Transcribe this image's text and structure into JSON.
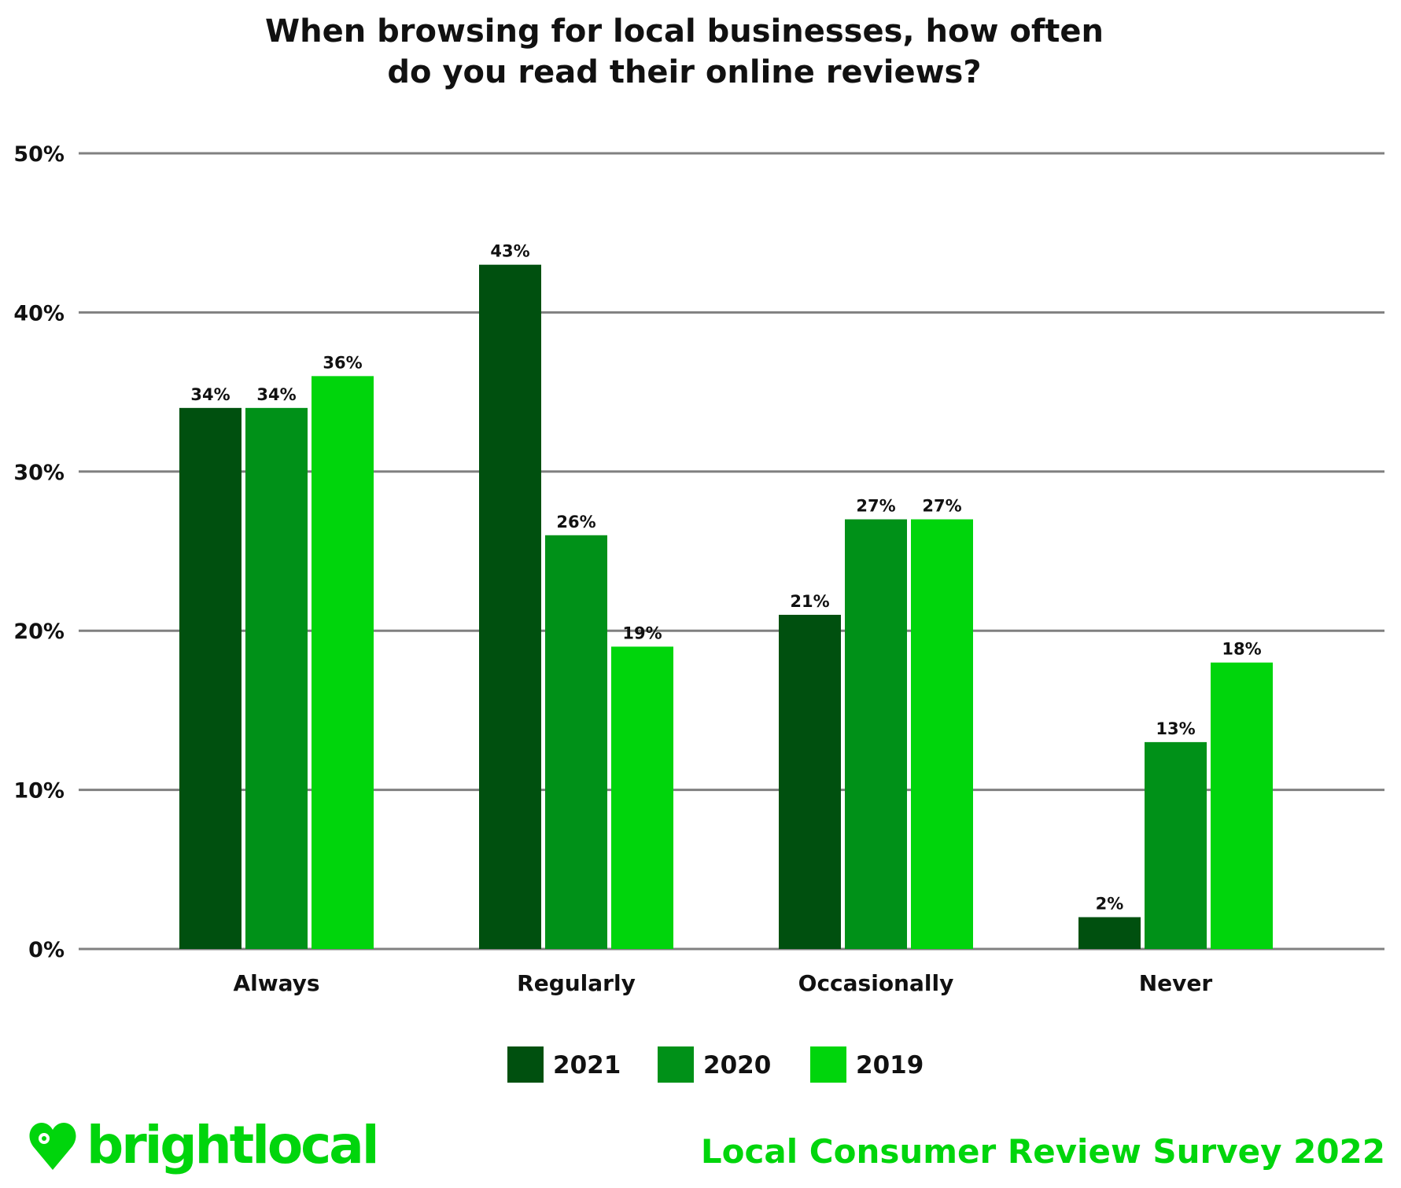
{
  "chart_data": {
    "type": "bar",
    "title_lines": [
      "When browsing for local businesses, how often",
      "do you read their online reviews?"
    ],
    "categories": [
      "Always",
      "Regularly",
      "Occasionally",
      "Never"
    ],
    "series": [
      {
        "name": "2021",
        "values": [
          34,
          43,
          21,
          2
        ],
        "color": "#00500f"
      },
      {
        "name": "2020",
        "values": [
          34,
          26,
          27,
          13
        ],
        "color": "#009118"
      },
      {
        "name": "2019",
        "values": [
          36,
          19,
          27,
          18
        ],
        "color": "#00d50c"
      }
    ],
    "ylim": [
      0,
      50
    ],
    "yticks": [
      0,
      10,
      20,
      30,
      40,
      50
    ],
    "ytick_labels": [
      "0%",
      "10%",
      "20%",
      "30%",
      "40%",
      "50%"
    ],
    "value_suffix": "%",
    "grid": true,
    "legend_placement": "bottom"
  },
  "branding": {
    "logo": "brightlocal",
    "footer": "Local Consumer Review Survey 2022",
    "accent": "#00d50c"
  }
}
